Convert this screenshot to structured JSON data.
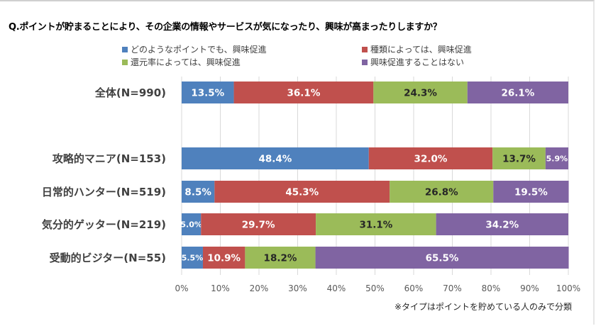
{
  "chart_data": {
    "type": "bar",
    "orientation": "horizontal",
    "stacked": true,
    "title": "Q.ポイントが貯まることにより、その企業の情報やサービスが気になったり、興味が高まったりしますか？",
    "categories": [
      "全体(N=990)",
      "攻略的マニア(N=153)",
      "日常的ハンター(N=519)",
      "気分的ゲッター(N=219)",
      "受動的ビジター(N=55)"
    ],
    "series": [
      {
        "name": "どのようなポイントでも、興味促進",
        "color": "#4f81bd",
        "label_color": "#ffffff",
        "values": [
          13.5,
          48.4,
          8.5,
          5.0,
          5.5
        ],
        "labels": [
          "13.5%",
          "48.4%",
          "8.5%",
          "5.0%",
          "5.5%"
        ]
      },
      {
        "name": "種類によっては、興味促進",
        "color": "#c0504d",
        "label_color": "#ffffff",
        "values": [
          36.1,
          32.0,
          45.3,
          29.7,
          10.9
        ],
        "labels": [
          "36.1%",
          "32.0%",
          "45.3%",
          "29.7%",
          "10.9%"
        ]
      },
      {
        "name": "還元率によっては、興味促進",
        "color": "#9bbb59",
        "label_color": "#262626",
        "values": [
          24.3,
          13.7,
          26.8,
          31.1,
          18.2
        ],
        "labels": [
          "24.3%",
          "13.7%",
          "26.8%",
          "31.1%",
          "18.2%"
        ]
      },
      {
        "name": "興味促進することはない",
        "color": "#8064a2",
        "label_color": "#ffffff",
        "values": [
          26.1,
          5.9,
          19.5,
          34.2,
          65.5
        ],
        "labels": [
          "26.1%",
          "5.9%",
          "19.5%",
          "34.2%",
          "65.5%"
        ]
      }
    ],
    "xlim": [
      0,
      100
    ],
    "x_ticks": [
      "0%",
      "10%",
      "20%",
      "30%",
      "40%",
      "50%",
      "60%",
      "70%",
      "80%",
      "90%",
      "100%"
    ],
    "grid": "vertical",
    "legend_position": "top",
    "note": "※タイプはポイントを貯めている人のみで分類"
  }
}
